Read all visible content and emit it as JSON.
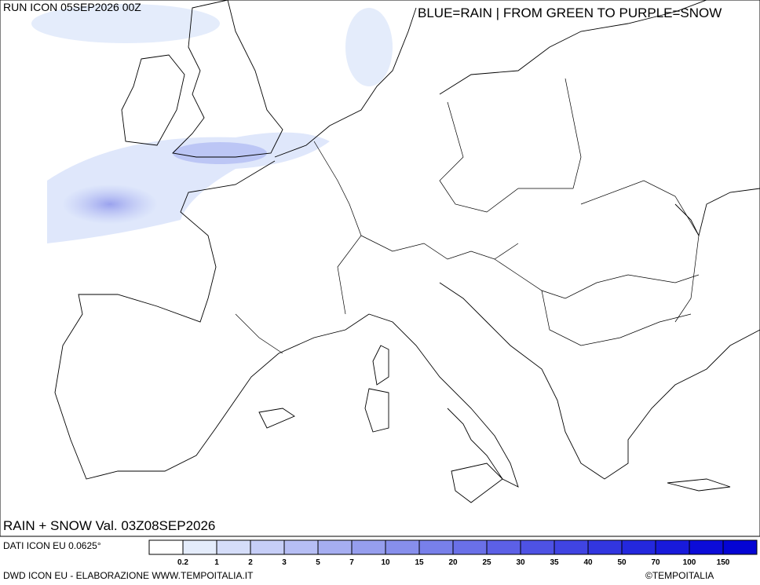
{
  "header": {
    "run": "RUN ICON 05SEP2026 00Z",
    "key": "BLUE=RAIN | FROM GREEN TO PURPLE=SNOW"
  },
  "map": {
    "title": "RAIN + SNOW Val. 03Z08SEP2026"
  },
  "footer": {
    "source": "DATI ICON EU 0.0625°",
    "credit": "DWD ICON EU - ELABORAZIONE WWW.TEMPOITALIA.IT",
    "copyright": "©TEMPOITALIA"
  },
  "legend": {
    "labels": [
      0.2,
      1,
      2,
      3,
      5,
      7,
      10,
      15,
      20,
      25,
      30,
      35,
      40,
      50,
      70,
      100,
      150
    ],
    "colors": [
      "#ffffff",
      "#e4ecfb",
      "#d5ddf9",
      "#c6cef7",
      "#b6bef4",
      "#a6aef1",
      "#969eee",
      "#878fec",
      "#7880ea",
      "#6a70e8",
      "#5c60e6",
      "#4e52e4",
      "#4044e2",
      "#3236e0",
      "#2428de",
      "#181adb",
      "#0c0cd8",
      "#0404d4"
    ]
  }
}
